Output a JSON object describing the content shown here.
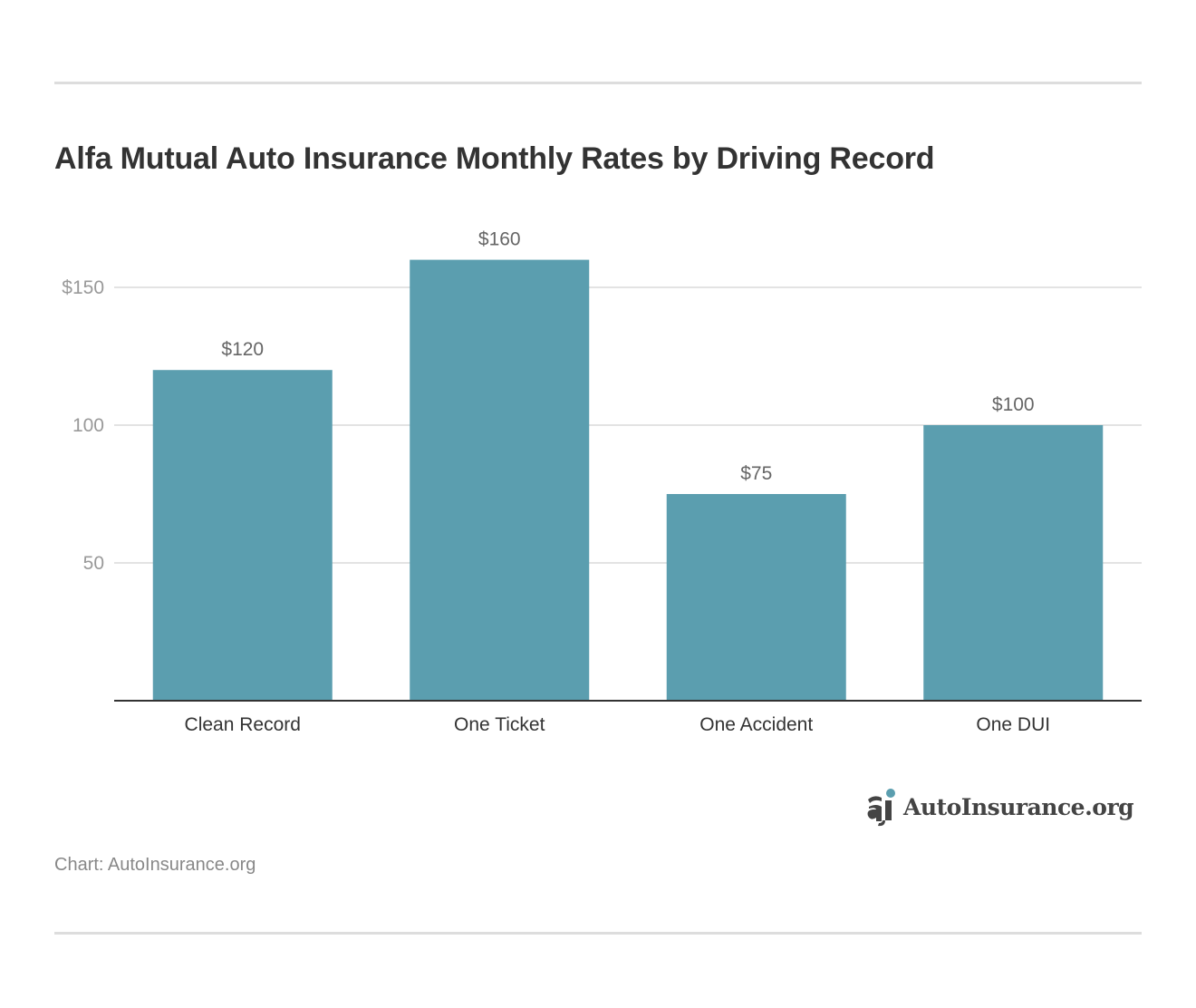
{
  "title": "Alfa Mutual Auto Insurance Monthly Rates by Driving Record",
  "source": "Chart: AutoInsurance.org",
  "logo_text": "AutoInsurance.org",
  "chart_data": {
    "type": "bar",
    "title": "Alfa Mutual Auto Insurance Monthly Rates by Driving Record",
    "categories": [
      "Clean Record",
      "One Ticket",
      "One Accident",
      "One DUI"
    ],
    "values": [
      120,
      160,
      75,
      100
    ],
    "data_labels": [
      "$120",
      "$160",
      "$75",
      "$100"
    ],
    "ylim": [
      0,
      160
    ],
    "yticks": [
      50,
      100,
      150
    ],
    "ytick_labels": [
      "50",
      "100",
      "$150"
    ],
    "xlabel": "",
    "ylabel": "",
    "grid": true,
    "colors": {
      "bar": "#5b9eaf",
      "grid": "#e3e3e3",
      "axis": "#333333"
    }
  }
}
